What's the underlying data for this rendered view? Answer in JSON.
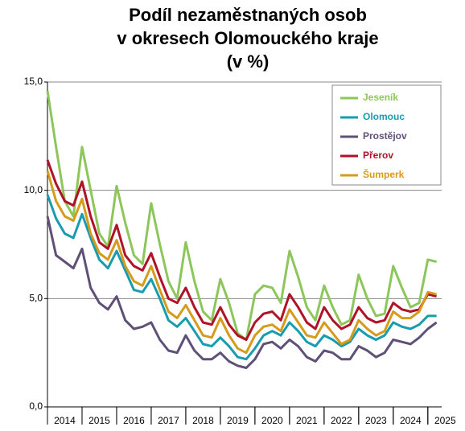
{
  "chart_data": {
    "type": "line",
    "title_lines": [
      "Podíl nezaměstnaných osob",
      "v okresech Olomouckého kraje",
      "(v %)"
    ],
    "x": [
      2014,
      2014.25,
      2014.5,
      2014.75,
      2015,
      2015.25,
      2015.5,
      2015.75,
      2016,
      2016.25,
      2016.5,
      2016.75,
      2017,
      2017.25,
      2017.5,
      2017.75,
      2018,
      2018.25,
      2018.5,
      2018.75,
      2019,
      2019.25,
      2019.5,
      2019.75,
      2020,
      2020.25,
      2020.5,
      2020.75,
      2021,
      2021.25,
      2021.5,
      2021.75,
      2022,
      2022.25,
      2022.5,
      2022.75,
      2023,
      2023.25,
      2023.5,
      2023.75,
      2024,
      2024.25,
      2024.5,
      2024.75,
      2025,
      2025.25
    ],
    "xlim": [
      2014,
      2025.4
    ],
    "xticks": [
      {
        "value": 2014.5,
        "label": "2014"
      },
      {
        "value": 2015.5,
        "label": "2015"
      },
      {
        "value": 2016.5,
        "label": "2016"
      },
      {
        "value": 2017.5,
        "label": "2017"
      },
      {
        "value": 2018.5,
        "label": "2018"
      },
      {
        "value": 2019.5,
        "label": "2019"
      },
      {
        "value": 2020.5,
        "label": "2020"
      },
      {
        "value": 2021.5,
        "label": "2021"
      },
      {
        "value": 2022.5,
        "label": "2022"
      },
      {
        "value": 2023.5,
        "label": "2023"
      },
      {
        "value": 2024.5,
        "label": "2024"
      },
      {
        "value": 2025.5,
        "label": "2025"
      }
    ],
    "ylim": [
      0,
      15
    ],
    "yticks": [
      {
        "value": 0,
        "label": "0,0"
      },
      {
        "value": 5,
        "label": "5,0"
      },
      {
        "value": 10,
        "label": "10,0"
      },
      {
        "value": 15,
        "label": "15,0"
      }
    ],
    "grid": true,
    "legend": "top-right",
    "series": [
      {
        "name": "Jeseník",
        "color": "#8dc65a",
        "values": [
          14.6,
          12.0,
          9.5,
          8.8,
          12.0,
          10.0,
          8.0,
          7.4,
          10.2,
          8.5,
          7.0,
          6.6,
          9.4,
          7.5,
          5.8,
          5.0,
          7.6,
          5.8,
          4.4,
          4.0,
          5.9,
          4.8,
          3.4,
          3.1,
          5.2,
          5.6,
          5.5,
          4.8,
          7.2,
          6.0,
          4.6,
          4.0,
          5.6,
          4.6,
          3.8,
          4.0,
          6.1,
          5.0,
          4.2,
          4.3,
          6.5,
          5.5,
          4.6,
          4.8,
          6.8,
          6.7
        ]
      },
      {
        "name": "Olomouc",
        "color": "#1a9cb0",
        "values": [
          9.8,
          8.7,
          8.0,
          7.8,
          8.9,
          7.8,
          6.8,
          6.4,
          7.2,
          6.3,
          5.4,
          5.3,
          5.9,
          5.0,
          4.0,
          3.7,
          4.1,
          3.5,
          2.9,
          2.8,
          3.2,
          2.8,
          2.3,
          2.2,
          2.7,
          3.3,
          3.5,
          3.3,
          3.9,
          3.5,
          3.0,
          2.8,
          3.3,
          3.1,
          2.8,
          3.0,
          3.6,
          3.3,
          3.1,
          3.3,
          3.9,
          3.7,
          3.6,
          3.8,
          4.2,
          4.2
        ]
      },
      {
        "name": "Prostějov",
        "color": "#5f5078",
        "values": [
          8.8,
          7.0,
          6.7,
          6.4,
          7.3,
          5.5,
          4.8,
          4.5,
          5.1,
          4.0,
          3.6,
          3.7,
          3.9,
          3.1,
          2.6,
          2.5,
          3.3,
          2.6,
          2.2,
          2.2,
          2.5,
          2.1,
          1.9,
          1.8,
          2.2,
          2.9,
          3.0,
          2.7,
          3.1,
          2.8,
          2.3,
          2.1,
          2.6,
          2.5,
          2.2,
          2.2,
          2.8,
          2.6,
          2.3,
          2.5,
          3.1,
          3.0,
          2.9,
          3.2,
          3.6,
          3.9
        ]
      },
      {
        "name": "Přerov",
        "color": "#b01228",
        "values": [
          11.4,
          10.3,
          9.5,
          9.3,
          10.4,
          8.8,
          7.6,
          7.3,
          8.4,
          7.0,
          6.5,
          6.3,
          7.1,
          6.0,
          5.0,
          4.8,
          5.5,
          4.6,
          3.9,
          3.8,
          4.6,
          3.8,
          3.3,
          3.1,
          3.9,
          4.3,
          4.4,
          4.0,
          5.2,
          4.6,
          3.9,
          3.6,
          4.6,
          4.0,
          3.6,
          3.8,
          4.6,
          4.1,
          3.9,
          4.0,
          4.8,
          4.5,
          4.4,
          4.5,
          5.2,
          5.1
        ]
      },
      {
        "name": "Šumperk",
        "color": "#d59b1c",
        "values": [
          10.9,
          9.5,
          8.8,
          8.6,
          9.6,
          8.0,
          7.1,
          6.8,
          7.7,
          6.5,
          5.8,
          5.6,
          6.5,
          5.4,
          4.4,
          4.1,
          4.7,
          4.0,
          3.3,
          3.2,
          4.1,
          3.3,
          2.7,
          2.5,
          3.3,
          3.7,
          3.8,
          3.5,
          4.5,
          3.9,
          3.3,
          3.2,
          3.9,
          3.4,
          2.9,
          3.1,
          4.0,
          3.6,
          3.3,
          3.5,
          4.4,
          4.1,
          4.1,
          4.4,
          5.3,
          5.2
        ]
      }
    ]
  }
}
